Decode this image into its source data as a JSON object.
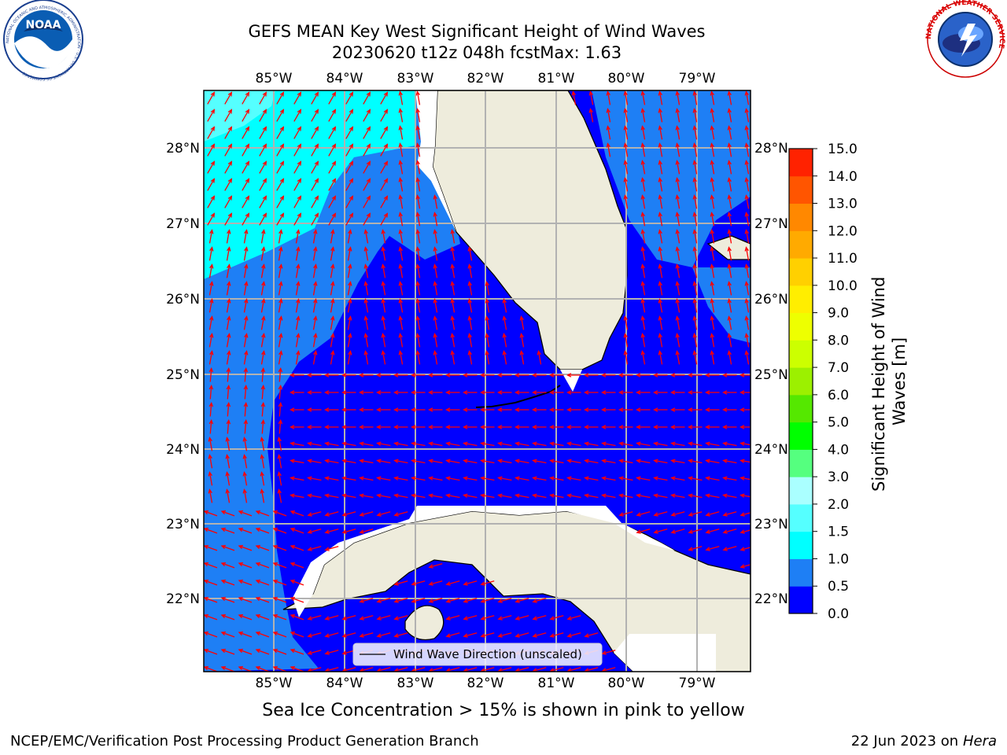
{
  "header": {
    "title": "GEFS MEAN Key West Significant Height of Wind Waves",
    "run": "20230620 t12z 048h fcst",
    "max_label": "Max: 1.63"
  },
  "logos": {
    "noaa_text": "NOAA",
    "noaa_ring_text": "NATIONAL OCEANIC AND ATMOSPHERIC ADMINISTRATION · U.S. DEPARTMENT OF COMMERCE",
    "nws_ring_text": "NATIONAL WEATHER SERVICE"
  },
  "map": {
    "lon_labels": [
      "85°W",
      "84°W",
      "83°W",
      "82°W",
      "81°W",
      "80°W",
      "79°W"
    ],
    "lat_labels": [
      "28°N",
      "27°N",
      "26°N",
      "25°N",
      "24°N",
      "23°N",
      "22°N"
    ],
    "legend_label": "Wind Wave Direction (unscaled)",
    "vector_color": "#ff0000",
    "land_color": "#eeecdc"
  },
  "colorbar": {
    "label": "Significant Height of Wind Waves [m]",
    "ticks": [
      "15.0",
      "14.0",
      "13.0",
      "12.0",
      "11.0",
      "10.0",
      "9.0",
      "8.0",
      "7.0",
      "6.0",
      "5.0",
      "4.0",
      "3.0",
      "2.0",
      "1.5",
      "1.0",
      "0.5",
      "0.0"
    ],
    "colors": [
      "#0000ff",
      "#1e7ff5",
      "#00ffff",
      "#55ffff",
      "#aaffff",
      "#55ff7f",
      "#00ff00",
      "#55e800",
      "#9cf000",
      "#ccff00",
      "#eeff00",
      "#ffee00",
      "#ffd000",
      "#ffaa00",
      "#ff8800",
      "#ff5500",
      "#ff2200"
    ]
  },
  "footer": {
    "sea_ice_note": "Sea Ice Concentration > 15% is shown in pink to yellow",
    "producer": "NCEP/EMC/Verification Post Processing Product Generation Branch",
    "date": "22 Jun 2023 on",
    "host": "Hera"
  }
}
